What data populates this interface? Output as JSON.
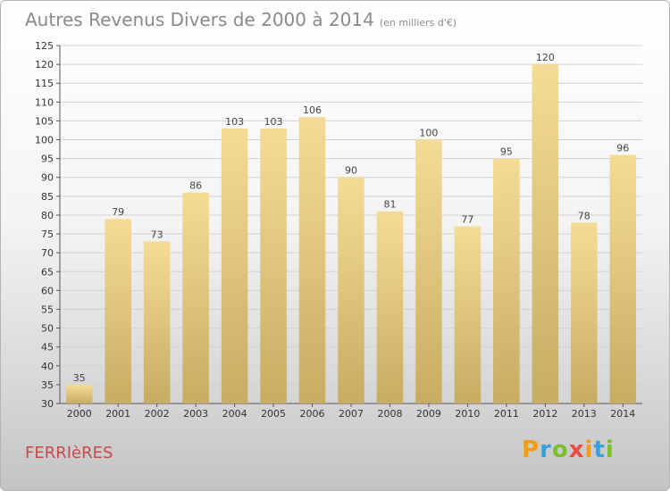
{
  "title": "Autres Revenus Divers de 2000 à 2014",
  "subtitle": "(en milliers d'€)",
  "location": "FERRIèRES",
  "logo": {
    "text": "Proxiti",
    "letters": [
      {
        "ch": "P",
        "color": "#f39c12"
      },
      {
        "ch": "r",
        "color": "#3aa0d8"
      },
      {
        "ch": "o",
        "color": "#7bbf2a"
      },
      {
        "ch": "x",
        "color": "#e74c3c"
      },
      {
        "ch": "i",
        "color": "#f39c12"
      },
      {
        "ch": "t",
        "color": "#3aa0d8"
      },
      {
        "ch": "i",
        "color": "#7bbf2a"
      }
    ]
  },
  "colors": {
    "bar_top": "#f5dc96",
    "bar_bottom": "#c7ac62",
    "grid": "#d2d2d2",
    "title": "#8a8a8a",
    "location": "#c84a4a"
  },
  "chart_data": {
    "type": "bar",
    "categories": [
      "2000",
      "2001",
      "2002",
      "2003",
      "2004",
      "2005",
      "2006",
      "2007",
      "2008",
      "2009",
      "2010",
      "2011",
      "2012",
      "2013",
      "2014"
    ],
    "values": [
      35,
      79,
      73,
      86,
      103,
      103,
      106,
      90,
      81,
      100,
      77,
      95,
      120,
      78,
      96
    ],
    "ylim": [
      30,
      125
    ],
    "ytick_step": 5,
    "grid": true,
    "xlabel": "",
    "ylabel": ""
  }
}
